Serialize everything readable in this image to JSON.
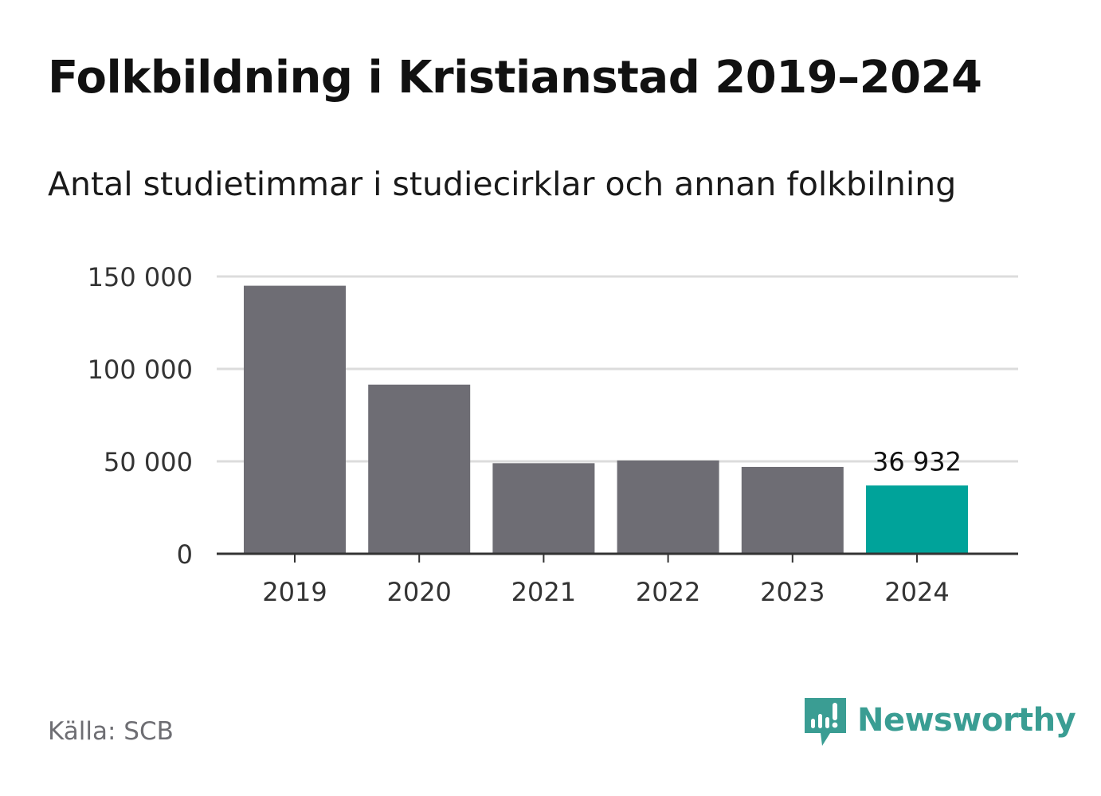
{
  "title": "Folkbildning i Kristianstad 2019–2024",
  "subtitle": "Antal studietimmar i studiecirklar och annan folkbilning",
  "source": "Källa: SCB",
  "brand": {
    "name": "Newsworthy",
    "icon": "newsworthy-logo-icon",
    "color": "#3a9d93"
  },
  "colors": {
    "bar": "#6e6d74",
    "highlight": "#00a39a",
    "grid": "#dcdcdc",
    "axis": "#333333"
  },
  "chart_data": {
    "type": "bar",
    "categories": [
      "2019",
      "2020",
      "2021",
      "2022",
      "2023",
      "2024"
    ],
    "values": [
      145000,
      91500,
      49000,
      50500,
      47000,
      36932
    ],
    "highlight_index": 5,
    "data_labels": [
      {
        "index": 5,
        "text": "36 932"
      }
    ],
    "yticks": [
      0,
      50000,
      100000,
      150000
    ],
    "ytick_labels": [
      "0",
      "50 000",
      "100 000",
      "150 000"
    ],
    "ylim": [
      0,
      150000
    ],
    "grid": true,
    "legend": "none",
    "title": "Folkbildning i Kristianstad 2019–2024",
    "subtitle": "Antal studietimmar i studiecirklar och annan folkbilning",
    "xlabel": "",
    "ylabel": ""
  }
}
